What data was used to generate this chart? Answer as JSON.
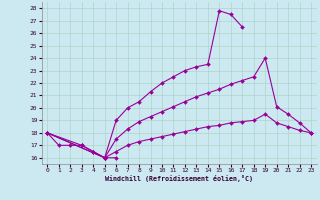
{
  "xlabel": "Windchill (Refroidissement éolien,°C)",
  "xlim": [
    -0.5,
    23.5
  ],
  "ylim": [
    15.5,
    28.5
  ],
  "xticks": [
    0,
    1,
    2,
    3,
    4,
    5,
    6,
    7,
    8,
    9,
    10,
    11,
    12,
    13,
    14,
    15,
    16,
    17,
    18,
    19,
    20,
    21,
    22,
    23
  ],
  "yticks": [
    16,
    17,
    18,
    19,
    20,
    21,
    22,
    23,
    24,
    25,
    26,
    27,
    28
  ],
  "bg_color": "#cce8f0",
  "grid_color": "#b0d4c8",
  "line_color": "#990099",
  "curve1_x": [
    0,
    1,
    2,
    3,
    4,
    5,
    6
  ],
  "curve1_y": [
    18,
    17,
    17,
    17,
    16.5,
    16,
    16
  ],
  "curve2_x": [
    0,
    3,
    4,
    5,
    6,
    7,
    8,
    9,
    10,
    11,
    12,
    13,
    14,
    15,
    16,
    17
  ],
  "curve2_y": [
    18,
    17,
    16.5,
    16,
    19.0,
    20.0,
    20.5,
    21.3,
    22.0,
    22.5,
    23.0,
    23.3,
    23.5,
    27.8,
    27.5,
    26.5
  ],
  "curve3_x": [
    0,
    5,
    6,
    7,
    8,
    9,
    10,
    11,
    12,
    13,
    14,
    15,
    16,
    17,
    18,
    19,
    20,
    21,
    22,
    23
  ],
  "curve3_y": [
    18,
    16,
    17.5,
    18.3,
    18.9,
    19.3,
    19.7,
    20.1,
    20.5,
    20.9,
    21.2,
    21.5,
    21.9,
    22.2,
    22.5,
    24.0,
    20.1,
    19.5,
    18.8,
    18
  ],
  "curve4_x": [
    0,
    5,
    6,
    7,
    8,
    9,
    10,
    11,
    12,
    13,
    14,
    15,
    16,
    17,
    18,
    19,
    20,
    21,
    22,
    23
  ],
  "curve4_y": [
    18,
    16,
    16.5,
    17.0,
    17.3,
    17.5,
    17.7,
    17.9,
    18.1,
    18.3,
    18.5,
    18.6,
    18.8,
    18.9,
    19.0,
    19.5,
    18.8,
    18.5,
    18.2,
    18
  ]
}
